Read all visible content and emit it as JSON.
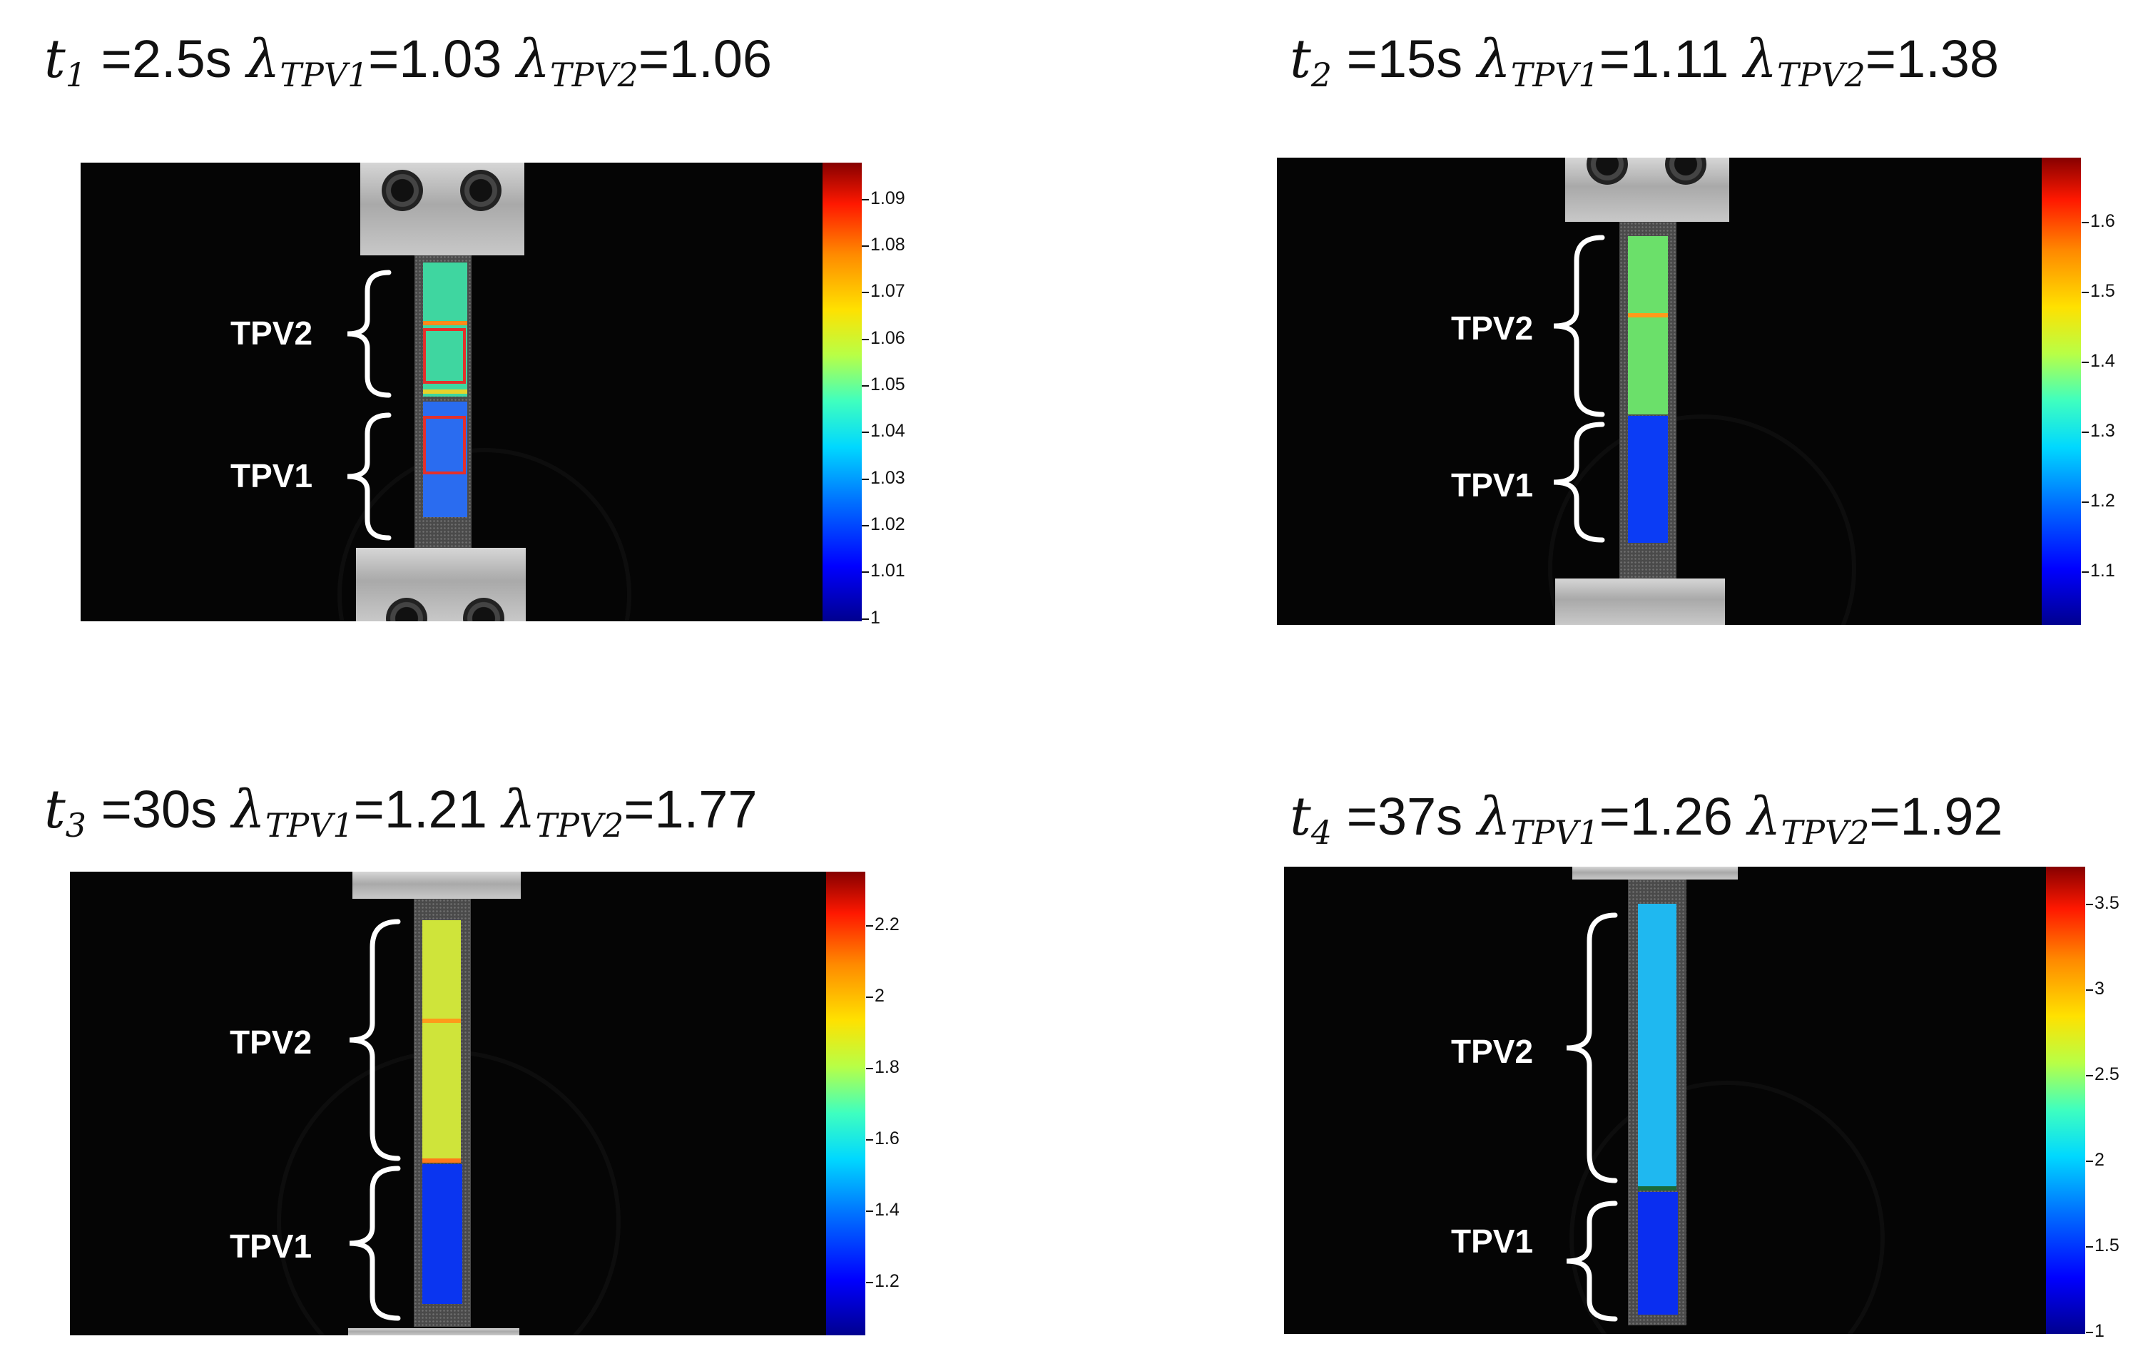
{
  "panels": [
    {
      "time_symbol": "t",
      "time_index": "1",
      "time_value": "=2.5s",
      "lambda_symbol": "λ",
      "tpv1_sub": "TPV1",
      "tpv1_value": "=1.03",
      "tpv2_sub": "TPV2",
      "tpv2_value": "=1.06",
      "label_upper": "TPV2",
      "label_lower": "TPV1",
      "colorbar_ticks": [
        "1.09",
        "1.08",
        "1.07",
        "1.06",
        "1.05",
        "1.04",
        "1.03",
        "1.02",
        "1.01",
        "1"
      ]
    },
    {
      "time_symbol": "t",
      "time_index": "2",
      "time_value": "=15s",
      "lambda_symbol": "λ",
      "tpv1_sub": "TPV1",
      "tpv1_value": "=1.11",
      "tpv2_sub": "TPV2",
      "tpv2_value": "=1.38",
      "label_upper": "TPV2",
      "label_lower": "TPV1",
      "colorbar_ticks": [
        "1.6",
        "1.5",
        "1.4",
        "1.3",
        "1.2",
        "1.1"
      ]
    },
    {
      "time_symbol": "t",
      "time_index": "3",
      "time_value": "=30s",
      "lambda_symbol": "λ",
      "tpv1_sub": "TPV1",
      "tpv1_value": "=1.21",
      "tpv2_sub": "TPV2",
      "tpv2_value": "=1.77",
      "label_upper": "TPV2",
      "label_lower": "TPV1",
      "colorbar_ticks": [
        "2.2",
        "2",
        "1.8",
        "1.6",
        "1.4",
        "1.2"
      ]
    },
    {
      "time_symbol": "t",
      "time_index": "4",
      "time_value": "=37s",
      "lambda_symbol": "λ",
      "tpv1_sub": "TPV1",
      "tpv1_value": "=1.26",
      "tpv2_sub": "TPV2",
      "tpv2_value": "=1.92",
      "label_upper": "TPV2",
      "label_lower": "TPV1",
      "colorbar_ticks": [
        "3.5",
        "3",
        "2.5",
        "2",
        "1.5",
        "1"
      ]
    }
  ],
  "colors": {
    "background": "#050505",
    "roi_box": "#e4302b",
    "tpv1_strain_panel1": "#2a6cf0",
    "tpv2_strain_panel1": "#3fd6a0",
    "tpv1_strain_panel2": "#0b3cf5",
    "tpv2_strain_panel2": "#6be06a",
    "tpv1_strain_panel3": "#0a35f0",
    "tpv2_strain_panel3": "#cfe43a",
    "tpv1_strain_panel4": "#0a2ef0",
    "tpv2_strain_panel4": "#1fb8f0"
  }
}
